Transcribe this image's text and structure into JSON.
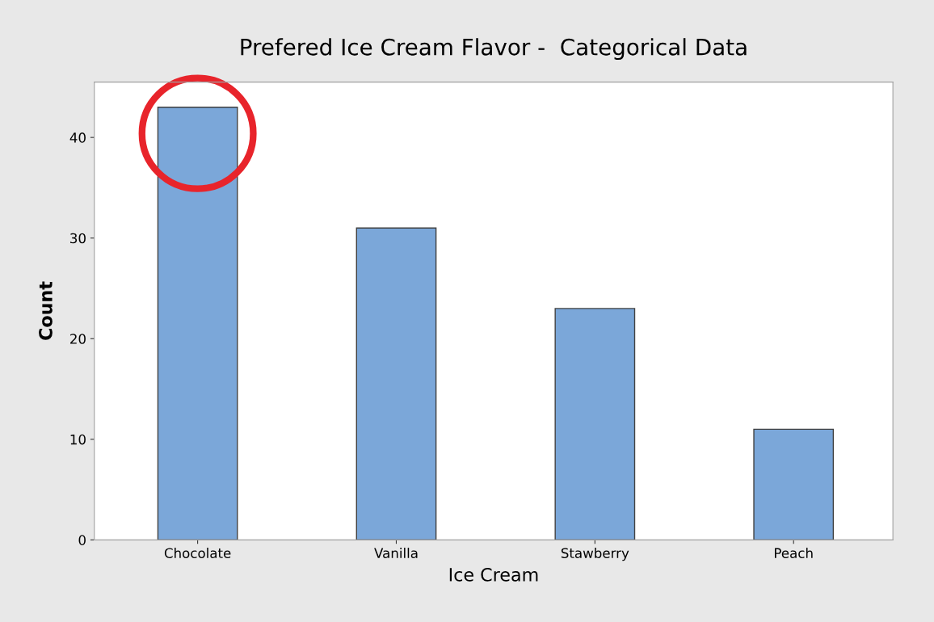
{
  "chart_data": {
    "type": "bar",
    "title": "Prefered Ice Cream Flavor -  Categorical Data",
    "xlabel": "Ice Cream",
    "ylabel": "Count",
    "categories": [
      "Chocolate",
      "Vanilla",
      "Stawberry",
      "Peach"
    ],
    "values": [
      43,
      31,
      23,
      11
    ],
    "color": "#7ba7d9",
    "ylim": [
      0,
      45.5
    ],
    "yticks": [
      0,
      10,
      20,
      30,
      40
    ],
    "grid": false,
    "legend": false
  }
}
